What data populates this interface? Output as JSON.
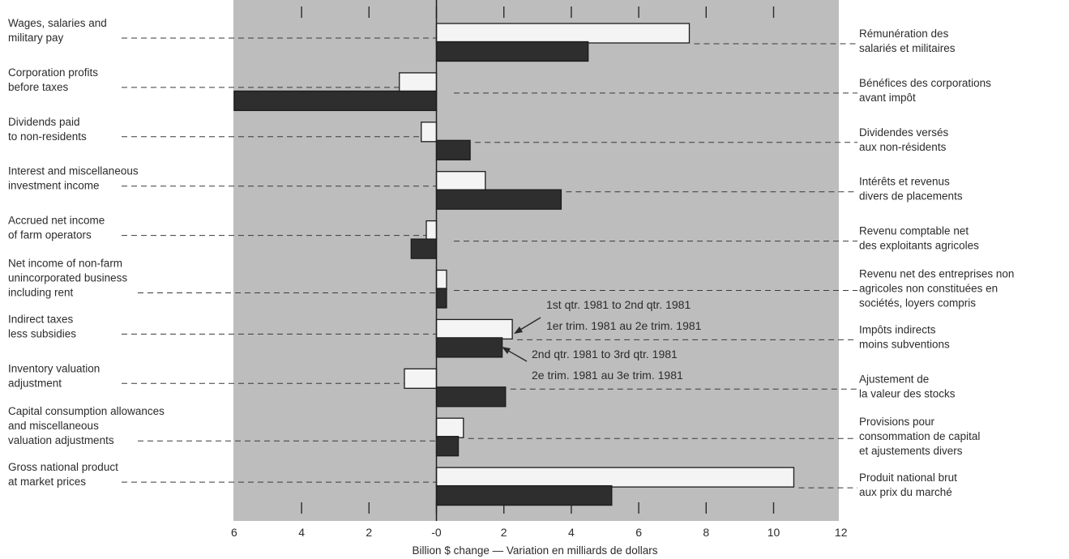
{
  "chart_data": {
    "type": "bar",
    "orientation": "horizontal",
    "xlabel": "Billion $ change — Variation en milliards de dollars",
    "xlim": [
      -6,
      12
    ],
    "x_tick_labels": [
      "6",
      "4",
      "2",
      "-0",
      "2",
      "4",
      "6",
      "8",
      "10",
      "12"
    ],
    "grid": false,
    "legend_placement": "center-right, pointing at Indirect taxes bars",
    "colors": {
      "plot_bg": "#bdbdbd",
      "series1": "#f4f4f4",
      "series2": "#2e2e2e"
    },
    "series": [
      {
        "name": "1st qtr. 1981 to 2nd qtr. 1981",
        "name_fr": "1er trim. 1981 au 2e trim. 1981",
        "values": [
          7.5,
          -1.1,
          -0.45,
          1.45,
          -0.3,
          0.3,
          2.25,
          -0.95,
          0.8,
          10.6
        ]
      },
      {
        "name": "2nd qtr. 1981 to 3rd qtr. 1981",
        "name_fr": "2e trim. 1981 au 3e trim. 1981",
        "values": [
          4.5,
          -6.0,
          1.0,
          3.7,
          -0.75,
          0.3,
          1.95,
          2.05,
          0.65,
          5.2
        ]
      }
    ],
    "categories_en": [
      [
        "Wages, salaries and",
        "military pay"
      ],
      [
        "Corporation profits",
        "before taxes"
      ],
      [
        "Dividends paid",
        "to non-residents"
      ],
      [
        "Interest and miscellaneous",
        "investment income"
      ],
      [
        "Accrued net income",
        "of farm operators"
      ],
      [
        "Net income of non-farm",
        "unincorporated business",
        "including rent"
      ],
      [
        "Indirect taxes",
        "less subsidies"
      ],
      [
        "Inventory valuation",
        "adjustment"
      ],
      [
        "Capital consumption allowances",
        "and miscellaneous",
        "valuation adjustments"
      ],
      [
        "Gross national product",
        "at market prices"
      ]
    ],
    "categories_fr": [
      [
        "Rémunération des",
        "salariés et militaires"
      ],
      [
        "Bénéfices des corporations",
        "avant impôt"
      ],
      [
        "Dividendes versés",
        "aux non-résidents"
      ],
      [
        "Intérêts et revenus",
        "divers de placements"
      ],
      [
        "Revenu comptable net",
        "des exploitants agricoles"
      ],
      [
        "Revenu net des entreprises non",
        "agricoles non constituées en",
        "sociétés, loyers compris"
      ],
      [
        "Impôts indirects",
        "moins subventions"
      ],
      [
        "Ajustement de",
        "la valeur des stocks"
      ],
      [
        "Provisions pour",
        "consommation de capital",
        "et ajustements divers"
      ],
      [
        "Produit national brut",
        "aux prix du marché"
      ]
    ]
  }
}
